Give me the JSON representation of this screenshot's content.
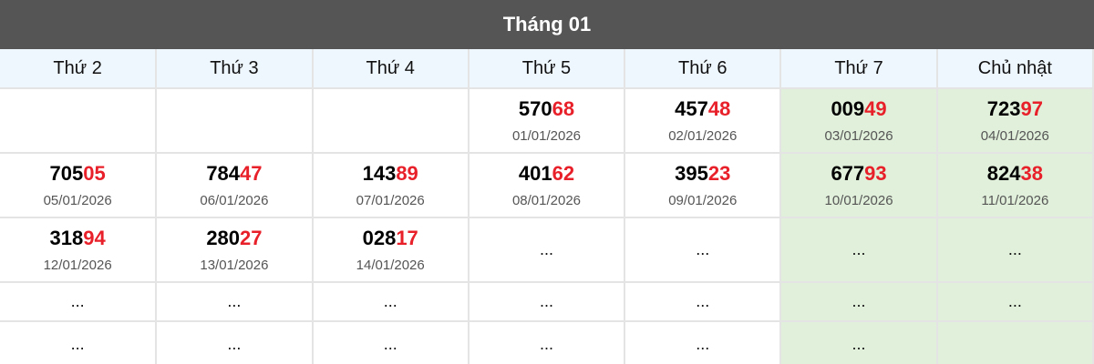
{
  "title": "Tháng 01",
  "colors": {
    "header_bg": "#555555",
    "weekday_bg": "#eef6fe",
    "weekend_bg": "#e0f0da",
    "highlight": "#e8202a"
  },
  "weekdays": [
    "Thứ 2",
    "Thứ 3",
    "Thứ 4",
    "Thứ 5",
    "Thứ 6",
    "Thứ 7",
    "Chủ nhật"
  ],
  "rows": [
    [
      null,
      null,
      null,
      {
        "prefix": "570",
        "suffix": "68",
        "date": "01/01/2026"
      },
      {
        "prefix": "457",
        "suffix": "48",
        "date": "02/01/2026"
      },
      {
        "prefix": "009",
        "suffix": "49",
        "date": "03/01/2026"
      },
      {
        "prefix": "723",
        "suffix": "97",
        "date": "04/01/2026"
      }
    ],
    [
      {
        "prefix": "705",
        "suffix": "05",
        "date": "05/01/2026"
      },
      {
        "prefix": "784",
        "suffix": "47",
        "date": "06/01/2026"
      },
      {
        "prefix": "143",
        "suffix": "89",
        "date": "07/01/2026"
      },
      {
        "prefix": "401",
        "suffix": "62",
        "date": "08/01/2026"
      },
      {
        "prefix": "395",
        "suffix": "23",
        "date": "09/01/2026"
      },
      {
        "prefix": "677",
        "suffix": "93",
        "date": "10/01/2026"
      },
      {
        "prefix": "824",
        "suffix": "38",
        "date": "11/01/2026"
      }
    ],
    [
      {
        "prefix": "318",
        "suffix": "94",
        "date": "12/01/2026"
      },
      {
        "prefix": "280",
        "suffix": "27",
        "date": "13/01/2026"
      },
      {
        "prefix": "028",
        "suffix": "17",
        "date": "14/01/2026"
      },
      {
        "text": "..."
      },
      {
        "text": "..."
      },
      {
        "text": "..."
      },
      {
        "text": "..."
      }
    ],
    [
      {
        "text": "..."
      },
      {
        "text": "..."
      },
      {
        "text": "..."
      },
      {
        "text": "..."
      },
      {
        "text": "..."
      },
      {
        "text": "..."
      },
      {
        "text": "..."
      }
    ],
    [
      {
        "text": "..."
      },
      {
        "text": "..."
      },
      {
        "text": "..."
      },
      {
        "text": "..."
      },
      {
        "text": "..."
      },
      {
        "text": "..."
      },
      null
    ]
  ]
}
